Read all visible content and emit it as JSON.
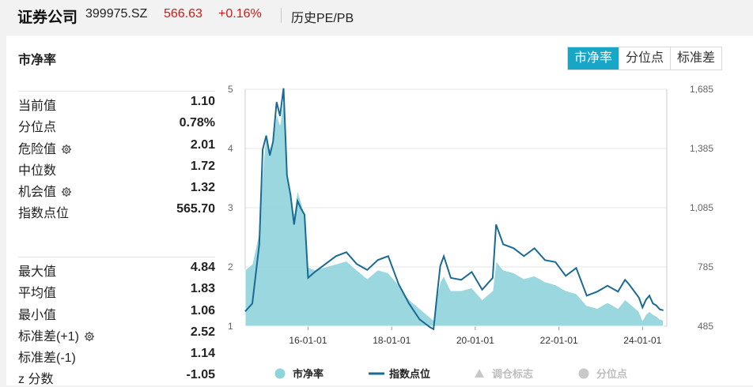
{
  "header": {
    "name": "证券公司",
    "code": "399975.SZ",
    "price": "566.63",
    "change": "+0.16%",
    "subtitle": "历史PE/PB"
  },
  "panel": {
    "title": "市净率",
    "tabs": [
      {
        "label": "市净率",
        "active": true
      },
      {
        "label": "分位点",
        "active": false
      },
      {
        "label": "标准差",
        "active": false
      }
    ]
  },
  "stats_top": [
    {
      "label": "当前值",
      "value": "1.10",
      "gear": false
    },
    {
      "label": "分位点",
      "value": "0.78%",
      "gear": false
    },
    {
      "label": "危险值",
      "value": "2.01",
      "gear": true
    },
    {
      "label": "中位数",
      "value": "1.72",
      "gear": false
    },
    {
      "label": "机会值",
      "value": "1.32",
      "gear": true
    },
    {
      "label": "指数点位",
      "value": "565.70",
      "gear": false
    }
  ],
  "stats_bottom": [
    {
      "label": "最大值",
      "value": "4.84",
      "gear": false
    },
    {
      "label": "平均值",
      "value": "1.83",
      "gear": false
    },
    {
      "label": "最小值",
      "value": "1.06",
      "gear": false
    },
    {
      "label": "标准差(+1)",
      "value": "2.52",
      "gear": true
    },
    {
      "label": "标准差(-1)",
      "value": "1.14",
      "gear": false
    },
    {
      "label": "z 分数",
      "value": "-1.05",
      "gear": false
    }
  ],
  "colors": {
    "area": "#8fd3db",
    "line": "#1a6a96",
    "accent": "#17a6c8",
    "legend_disabled": "#c8c8c8"
  },
  "chart_data": {
    "type": "area",
    "left_axis": {
      "ticks": [
        "5",
        "4",
        "3",
        "2",
        "1"
      ],
      "range": [
        1,
        5
      ]
    },
    "right_axis": {
      "ticks": [
        "1,685",
        "1,385",
        "1,085",
        "785",
        "485"
      ],
      "range": [
        485,
        1685
      ]
    },
    "x_ticks": [
      "16-01-01",
      "18-01-01",
      "20-01-01",
      "22-01-01",
      "24-01-01"
    ],
    "x_range": [
      "2014-07-01",
      "2024-07-31"
    ],
    "legend": [
      {
        "label": "市净率",
        "icon": "circle",
        "enabled": true
      },
      {
        "label": "指数点位",
        "icon": "line",
        "enabled": true
      },
      {
        "label": "调仓标志",
        "icon": "triangle",
        "enabled": false
      },
      {
        "label": "分位点",
        "icon": "circle",
        "enabled": false
      }
    ],
    "series": [
      {
        "name": "市净率",
        "axis": "left",
        "x": [
          "2014-07",
          "2014-09",
          "2014-11",
          "2014-12",
          "2015-01",
          "2015-02",
          "2015-03",
          "2015-04",
          "2015-05",
          "2015-06",
          "2015-07",
          "2015-08",
          "2015-09",
          "2015-10",
          "2015-11",
          "2015-12",
          "2016-01",
          "2016-03",
          "2016-06",
          "2016-09",
          "2016-12",
          "2017-03",
          "2017-06",
          "2017-09",
          "2017-12",
          "2018-03",
          "2018-06",
          "2018-09",
          "2018-12",
          "2019-01",
          "2019-02",
          "2019-03",
          "2019-04",
          "2019-06",
          "2019-09",
          "2019-12",
          "2020-03",
          "2020-06",
          "2020-07",
          "2020-09",
          "2020-12",
          "2021-03",
          "2021-06",
          "2021-09",
          "2021-12",
          "2022-03",
          "2022-06",
          "2022-09",
          "2022-12",
          "2023-03",
          "2023-06",
          "2023-08",
          "2023-09",
          "2023-12",
          "2024-01",
          "2024-02",
          "2024-03",
          "2024-04",
          "2024-05",
          "2024-06",
          "2024-07"
        ],
        "values": [
          1.95,
          2.05,
          2.6,
          3.6,
          4.3,
          4.0,
          4.1,
          4.6,
          4.4,
          4.84,
          3.6,
          3.2,
          2.9,
          3.3,
          3.1,
          2.9,
          2.0,
          1.95,
          2.0,
          2.05,
          2.1,
          1.95,
          1.8,
          1.95,
          1.9,
          1.7,
          1.45,
          1.3,
          1.15,
          1.1,
          1.5,
          1.75,
          1.85,
          1.6,
          1.6,
          1.65,
          1.45,
          1.6,
          2.1,
          1.95,
          1.9,
          1.8,
          1.85,
          1.75,
          1.7,
          1.6,
          1.55,
          1.35,
          1.3,
          1.4,
          1.3,
          1.45,
          1.4,
          1.25,
          1.1,
          1.2,
          1.25,
          1.2,
          1.17,
          1.12,
          1.1
        ]
      },
      {
        "name": "指数点位",
        "axis": "right",
        "x": [
          "2014-07",
          "2014-09",
          "2014-11",
          "2014-12",
          "2015-01",
          "2015-02",
          "2015-03",
          "2015-04",
          "2015-05",
          "2015-06",
          "2015-07",
          "2015-08",
          "2015-09",
          "2015-10",
          "2015-11",
          "2015-12",
          "2016-01",
          "2016-03",
          "2016-06",
          "2016-09",
          "2016-12",
          "2017-03",
          "2017-06",
          "2017-09",
          "2017-12",
          "2018-03",
          "2018-06",
          "2018-09",
          "2018-12",
          "2019-01",
          "2019-02",
          "2019-03",
          "2019-04",
          "2019-06",
          "2019-09",
          "2019-12",
          "2020-03",
          "2020-06",
          "2020-07",
          "2020-09",
          "2020-12",
          "2021-03",
          "2021-06",
          "2021-09",
          "2021-12",
          "2022-03",
          "2022-06",
          "2022-09",
          "2022-12",
          "2023-03",
          "2023-06",
          "2023-08",
          "2023-09",
          "2023-12",
          "2024-01",
          "2024-02",
          "2024-03",
          "2024-04",
          "2024-05",
          "2024-06",
          "2024-07"
        ],
        "values": [
          560,
          600,
          900,
          1380,
          1450,
          1350,
          1420,
          1620,
          1550,
          1690,
          1250,
          1150,
          1000,
          1120,
          1080,
          1050,
          730,
          760,
          800,
          840,
          860,
          800,
          770,
          820,
          840,
          700,
          600,
          520,
          480,
          470,
          640,
          790,
          840,
          730,
          720,
          760,
          670,
          730,
          1000,
          900,
          880,
          840,
          880,
          820,
          810,
          740,
          780,
          640,
          660,
          690,
          660,
          720,
          700,
          630,
          580,
          620,
          640,
          600,
          590,
          570,
          566
        ]
      }
    ]
  }
}
